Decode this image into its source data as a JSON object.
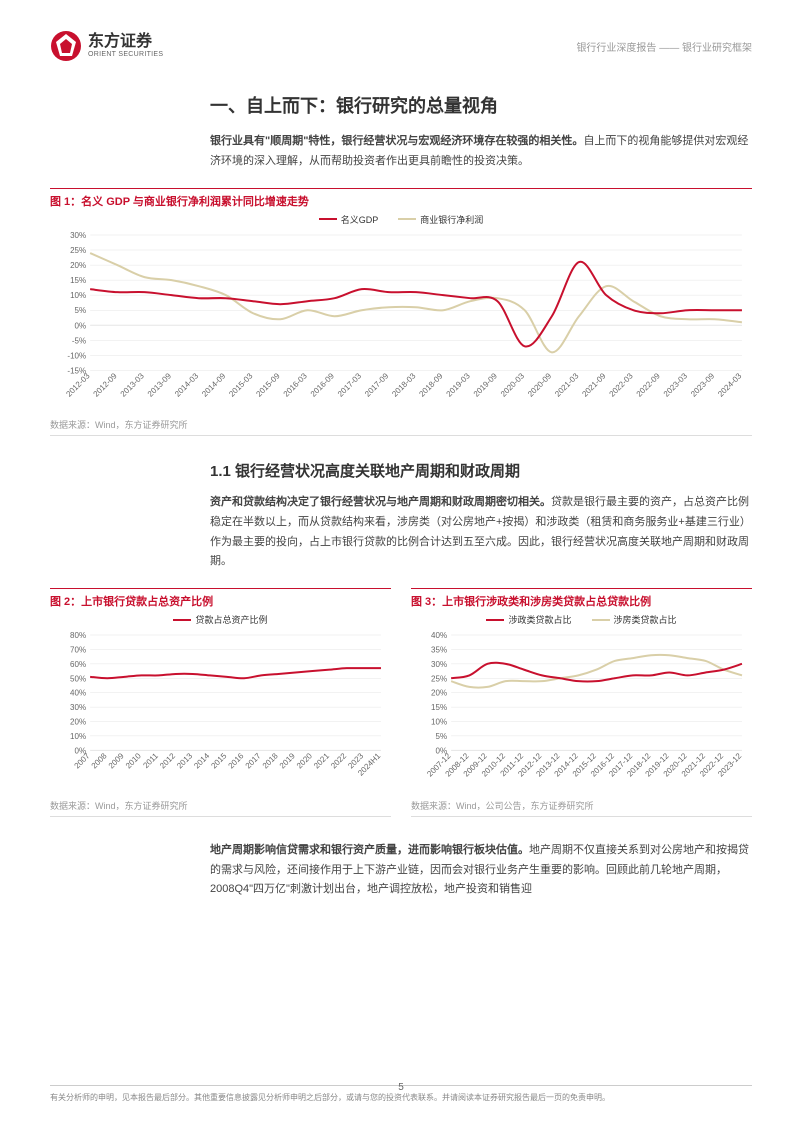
{
  "header": {
    "logo_cn": "东方证券",
    "logo_en": "ORIENT SECURITIES",
    "breadcrumb": "银行行业深度报告 —— 银行业研究框架"
  },
  "section1": {
    "title": "一、自上而下：银行研究的总量视角",
    "para_bold": "银行业具有\"顺周期\"特性，银行经营状况与宏观经济环境存在较强的相关性。",
    "para_rest": "自上而下的视角能够提供对宏观经济环境的深入理解，从而帮助投资者作出更具前瞻性的投资决策。"
  },
  "fig1": {
    "title": "图 1：名义 GDP 与商业银行净利润累计同比增速走势",
    "type": "line",
    "legend": [
      {
        "label": "名义GDP",
        "color": "#c8102e"
      },
      {
        "label": "商业银行净利润",
        "color": "#d9cfa8"
      }
    ],
    "x_labels": [
      "2012-03",
      "2012-09",
      "2013-03",
      "2013-09",
      "2014-03",
      "2014-09",
      "2015-03",
      "2015-09",
      "2016-03",
      "2016-09",
      "2017-03",
      "2017-09",
      "2018-03",
      "2018-09",
      "2019-03",
      "2019-09",
      "2020-03",
      "2020-09",
      "2021-03",
      "2021-09",
      "2022-03",
      "2022-09",
      "2023-03",
      "2023-09",
      "2024-03"
    ],
    "y_ticks": [
      -15,
      -10,
      -5,
      0,
      5,
      10,
      15,
      20,
      25,
      30
    ],
    "series": {
      "gdp": [
        12,
        11,
        11,
        10,
        9,
        9,
        8,
        7,
        8,
        9,
        12,
        11,
        11,
        10,
        9,
        8,
        -7,
        3,
        21,
        10,
        5,
        4,
        5,
        5,
        5
      ],
      "profit": [
        24,
        20,
        16,
        15,
        13,
        10,
        4,
        2,
        5,
        3,
        5,
        6,
        6,
        5,
        8,
        9,
        5,
        -9,
        3,
        13,
        8,
        3,
        2,
        2,
        1
      ]
    },
    "source": "数据来源：Wind，东方证券研究所",
    "colors": {
      "grid": "#e5e5e5",
      "axis": "#999"
    },
    "line_width": 2
  },
  "section11": {
    "title": "1.1 银行经营状况高度关联地产周期和财政周期",
    "para_bold": "资产和贷款结构决定了银行经营状况与地产周期和财政周期密切相关。",
    "para_rest": "贷款是银行最主要的资产，占总资产比例稳定在半数以上，而从贷款结构来看，涉房类（对公房地产+按揭）和涉政类（租赁和商务服务业+基建三行业）作为最主要的投向，占上市银行贷款的比例合计达到五至六成。因此，银行经营状况高度关联地产周期和财政周期。"
  },
  "fig2": {
    "title": "图 2：上市银行贷款占总资产比例",
    "type": "line",
    "legend": [
      {
        "label": "贷款占总资产比例",
        "color": "#c8102e"
      }
    ],
    "x_labels": [
      "2007",
      "2008",
      "2009",
      "2010",
      "2011",
      "2012",
      "2013",
      "2014",
      "2015",
      "2016",
      "2017",
      "2018",
      "2019",
      "2020",
      "2021",
      "2022",
      "2023",
      "2024H1"
    ],
    "y_ticks": [
      0,
      10,
      20,
      30,
      40,
      50,
      60,
      70,
      80
    ],
    "series": {
      "ratio": [
        51,
        50,
        51,
        52,
        52,
        53,
        53,
        52,
        51,
        50,
        52,
        53,
        54,
        55,
        56,
        57,
        57,
        57
      ]
    },
    "source": "数据来源：Wind，东方证券研究所",
    "colors": {
      "grid": "#e5e5e5"
    },
    "line_width": 2
  },
  "fig3": {
    "title": "图 3：上市银行涉政类和涉房类贷款占总贷款比例",
    "type": "line",
    "legend": [
      {
        "label": "涉政类贷款占比",
        "color": "#c8102e"
      },
      {
        "label": "涉房类贷款占比",
        "color": "#d9cfa8"
      }
    ],
    "x_labels": [
      "2007-12",
      "2008-12",
      "2009-12",
      "2010-12",
      "2011-12",
      "2012-12",
      "2013-12",
      "2014-12",
      "2015-12",
      "2016-12",
      "2017-12",
      "2018-12",
      "2019-12",
      "2020-12",
      "2021-12",
      "2022-12",
      "2023-12"
    ],
    "y_ticks": [
      0,
      5,
      10,
      15,
      20,
      25,
      30,
      35,
      40
    ],
    "series": {
      "gov": [
        25,
        26,
        30,
        30,
        28,
        26,
        25,
        24,
        24,
        25,
        26,
        26,
        27,
        26,
        27,
        28,
        30
      ],
      "housing": [
        24,
        22,
        22,
        24,
        24,
        24,
        25,
        26,
        28,
        31,
        32,
        33,
        33,
        32,
        31,
        28,
        26
      ]
    },
    "source": "数据来源：Wind，公司公告，东方证券研究所",
    "colors": {
      "grid": "#e5e5e5"
    },
    "line_width": 2
  },
  "para3": {
    "bold": "地产周期影响信贷需求和银行资产质量，进而影响银行板块估值。",
    "rest": "地产周期不仅直接关系到对公房地产和按揭贷的需求与风险，还间接作用于上下游产业链，因而会对银行业务产生重要的影响。回顾此前几轮地产周期，2008Q4\"四万亿\"刺激计划出台，地产调控放松，地产投资和销售迎"
  },
  "footer": {
    "text": "有关分析师的申明，见本报告最后部分。其他重要信息披露见分析师申明之后部分，或请与您的投资代表联系。并请阅读本证券研究报告最后一页的免责申明。",
    "page": "5"
  }
}
